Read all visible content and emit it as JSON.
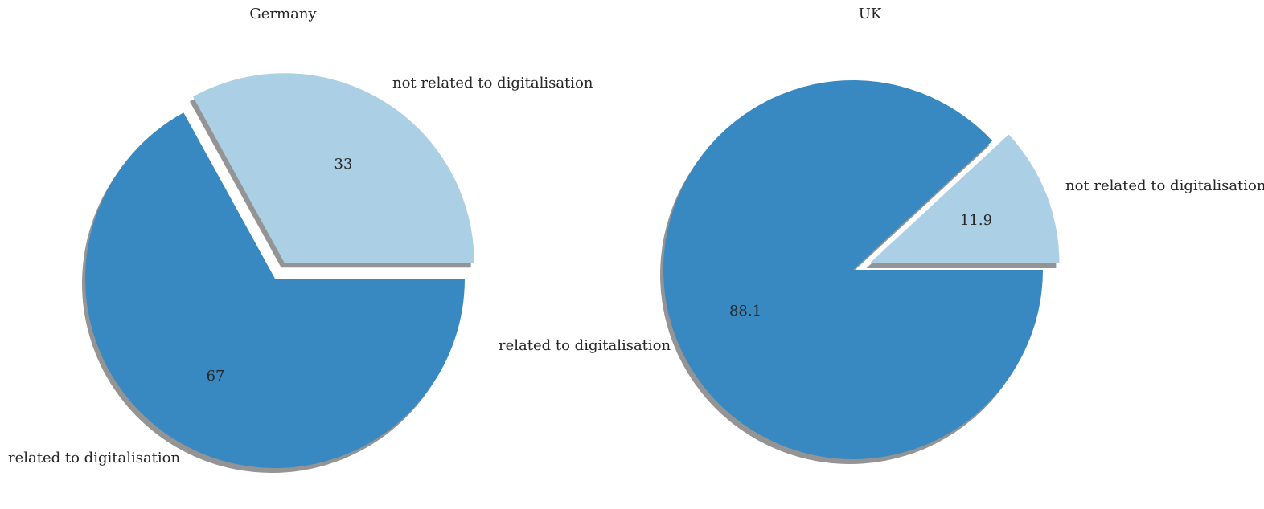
{
  "chart_data": [
    {
      "type": "pie",
      "title": "Germany",
      "slices": [
        {
          "label": "not related to digitalisation",
          "value": 33,
          "value_label": "33",
          "color": "#abcfe5",
          "exploded": true
        },
        {
          "label": "related to digitalisation",
          "value": 67,
          "value_label": "67",
          "color": "#3888c1",
          "exploded": false
        }
      ],
      "shadow": true
    },
    {
      "type": "pie",
      "title": "UK",
      "slices": [
        {
          "label": "not related to digitalisation",
          "value": 11.9,
          "value_label": "11.9",
          "color": "#abcfe5",
          "exploded": true
        },
        {
          "label": "related to digitalisation",
          "value": 88.1,
          "value_label": "88.1",
          "color": "#3888c1",
          "exploded": false
        }
      ],
      "shadow": true
    }
  ]
}
